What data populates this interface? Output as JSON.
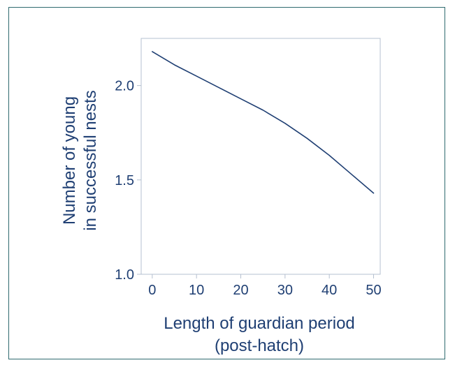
{
  "chart_data": {
    "type": "line",
    "title": "",
    "xlabel": "Length of guardian period (post-hatch)",
    "xlabel_lines": [
      "Length of guardian period",
      "(post-hatch)"
    ],
    "ylabel": "Number of young in successful nests",
    "ylabel_lines": [
      "Number of young",
      "in successful nests"
    ],
    "xlim": [
      -2.5,
      51.5
    ],
    "ylim": [
      1.0,
      2.25
    ],
    "xticks": [
      0,
      10,
      20,
      30,
      40,
      50
    ],
    "xtick_labels": [
      "0",
      "10",
      "20",
      "30",
      "40",
      "50"
    ],
    "yticks": [
      1.0,
      1.5,
      2.0
    ],
    "ytick_labels": [
      "1.0",
      "1.5",
      "2.0"
    ],
    "grid": false,
    "series": [
      {
        "x": [
          0,
          5,
          10,
          15,
          20,
          25,
          30,
          35,
          40,
          45,
          50
        ],
        "y": [
          2.18,
          2.11,
          2.05,
          1.99,
          1.93,
          1.87,
          1.8,
          1.72,
          1.63,
          1.53,
          1.43
        ]
      }
    ],
    "colors": {
      "line": "#1f3f73",
      "axis": "#b5c0d0",
      "text": "#1f3f73",
      "frame": "#2f6a6f"
    }
  }
}
